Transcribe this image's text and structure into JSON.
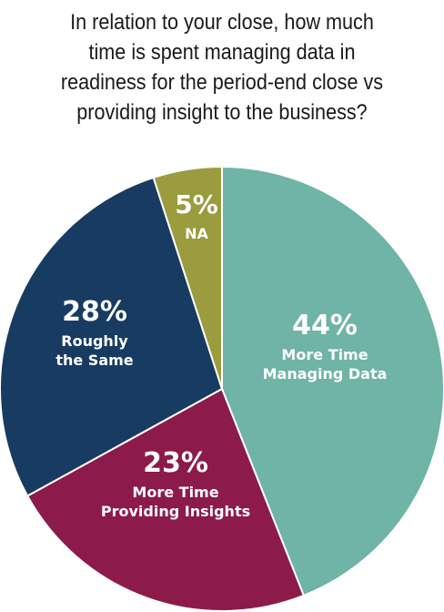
{
  "title_lines": [
    "In relation to your close, how much",
    "time is spent managing data in",
    "readiness for the period-end close vs",
    "providing insight to the business?"
  ],
  "chart_data": {
    "type": "pie",
    "title": "In relation to your close, how much time is spent managing data in readiness for the period-end close vs providing insight to the business?",
    "legend": "none",
    "slices": [
      {
        "label": "More Time Managing Data",
        "label_lines": [
          "More Time",
          "Managing Data"
        ],
        "value": 44,
        "display": "44%",
        "color": "#6fb4a6"
      },
      {
        "label": "More Time Providing Insights",
        "label_lines": [
          "More Time",
          "Providing Insights"
        ],
        "value": 23,
        "display": "23%",
        "color": "#8c1a4b"
      },
      {
        "label": "Roughly the Same",
        "label_lines": [
          "Roughly",
          "the Same"
        ],
        "value": 28,
        "display": "28%",
        "color": "#183b61"
      },
      {
        "label": "NA",
        "label_lines": [
          "NA"
        ],
        "value": 5,
        "display": "5%",
        "color": "#9a9c3e"
      }
    ]
  }
}
